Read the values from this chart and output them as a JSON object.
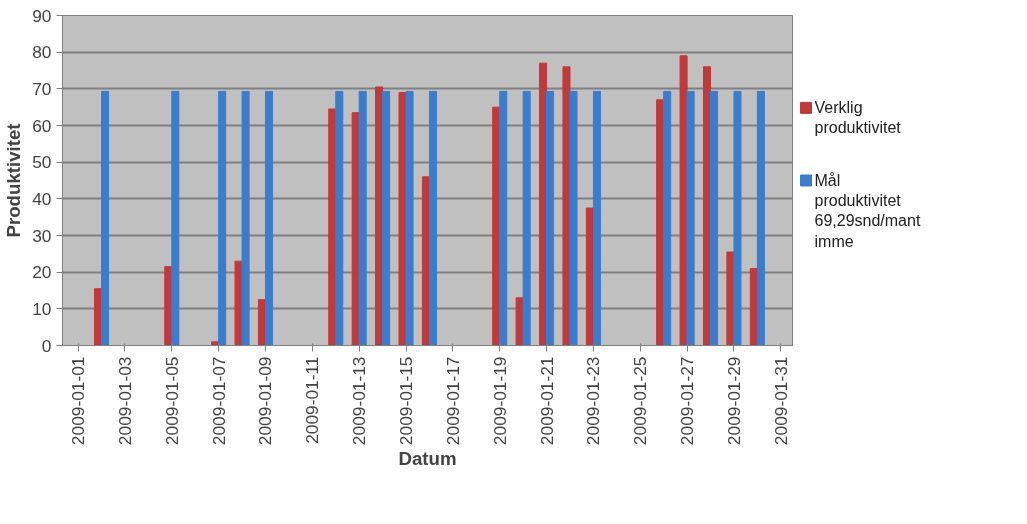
{
  "chart_data": {
    "type": "bar",
    "xlabel": "Datum",
    "ylabel": "Produktivitet",
    "x": [
      "2009-01-02",
      "2009-01-05",
      "2009-01-07",
      "2009-01-08",
      "2009-01-09",
      "2009-01-12",
      "2009-01-13",
      "2009-01-14",
      "2009-01-15",
      "2009-01-16",
      "2009-01-19",
      "2009-01-20",
      "2009-01-21",
      "2009-01-22",
      "2009-01-23",
      "2009-01-26",
      "2009-01-27",
      "2009-01-28",
      "2009-01-29",
      "2009-01-30"
    ],
    "series": [
      {
        "name": "Verklig produktivitet",
        "color": "#c0393b",
        "values": [
          15.5,
          21.5,
          1,
          23,
          12.5,
          64.5,
          63.5,
          70.5,
          69,
          46,
          65,
          13,
          77,
          76,
          37.5,
          67,
          79,
          76,
          25.5,
          21
        ]
      },
      {
        "name": "Mål produktivitet 69,29snd/mantimme",
        "color": "#3a7dcf",
        "values": [
          69.29,
          69.29,
          69.29,
          69.29,
          69.29,
          69.29,
          69.29,
          69.29,
          69.29,
          69.29,
          69.29,
          69.29,
          69.29,
          69.29,
          69.29,
          69.29,
          69.29,
          69.29,
          69.29,
          69.29
        ]
      }
    ],
    "xlim": [
      "2008-12-31T08:00",
      "2009-01-31T12:00"
    ],
    "xticks": [
      "2009-01-01",
      "2009-01-03",
      "2009-01-05",
      "2009-01-07",
      "2009-01-09",
      "2009-01-11",
      "2009-01-13",
      "2009-01-15",
      "2009-01-17",
      "2009-01-19",
      "2009-01-21",
      "2009-01-23",
      "2009-01-25",
      "2009-01-27",
      "2009-01-29",
      "2009-01-31"
    ],
    "ylim": [
      0,
      90
    ],
    "yticks": [
      0,
      10,
      20,
      30,
      40,
      50,
      60,
      70,
      80,
      90
    ],
    "grid": "y",
    "legend": "right"
  }
}
